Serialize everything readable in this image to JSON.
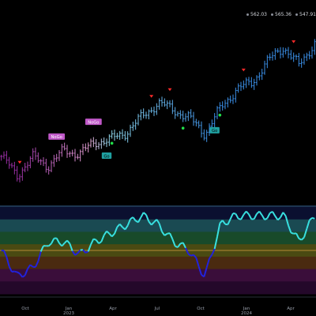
{
  "quote": {
    "open": "562.03",
    "high": "565.36",
    "low": "547.91"
  },
  "axis": {
    "month_labels": [
      "Oct",
      "Jan",
      "Apr",
      "Jul",
      "Oct",
      "Jan",
      "Apr"
    ],
    "year_labels": [
      "2023",
      "2024"
    ]
  },
  "signals": {
    "labels": [
      {
        "text": "NoGo",
        "bg": "#c058c8",
        "fg": "#ffffff"
      },
      {
        "text": "NoGo",
        "bg": "#c058c8",
        "fg": "#ffffff"
      },
      {
        "text": "Go",
        "bg": "#1fa0a0",
        "fg": "#000000"
      },
      {
        "text": "Go",
        "bg": "#1fa0a0",
        "fg": "#000000"
      }
    ]
  },
  "colors": {
    "background": "#000000",
    "go_strong": "#3a8ee6",
    "go_weak": "#8fd6ea",
    "nogo_strong": "#9b2fa6",
    "nogo_weak": "#e6a7d4",
    "oscillator_above": "#38e0e0",
    "oscillator_below": "#2222dd",
    "up_arrow": "#ff2a2a",
    "go_dot": "#22e04a",
    "osc_bands": [
      "#0b1030",
      "#1a4a52",
      "#184a2a",
      "#4a4a12",
      "#4a2a10",
      "#3a0e3a",
      "#24082a"
    ],
    "frame_line": "#3a6aa0",
    "zero_line": "#d8a040"
  },
  "chart_data": [
    {
      "type": "ohlc",
      "x": [
        "2022-09",
        "2022-10",
        "2022-11",
        "2022-12",
        "2023-01",
        "2023-02",
        "2023-03",
        "2023-04",
        "2023-05",
        "2023-06",
        "2023-07",
        "2023-08",
        "2023-09",
        "2023-10",
        "2023-11",
        "2023-12",
        "2024-01",
        "2024-02",
        "2024-03",
        "2024-04",
        "2024-05"
      ],
      "close": [
        393,
        371,
        392,
        382,
        400,
        396,
        410,
        413,
        422,
        440,
        456,
        448,
        438,
        420,
        450,
        472,
        480,
        505,
        522,
        500,
        527
      ],
      "series": [
        {
          "name": "Go",
          "color": "#3a8ee6"
        },
        {
          "name": "NoGo",
          "color": "#9b2fa6"
        }
      ]
    },
    {
      "type": "area",
      "x": [
        "2022-09",
        "2022-10",
        "2022-11",
        "2022-12",
        "2023-01",
        "2023-02",
        "2023-03",
        "2023-04",
        "2023-05",
        "2023-06",
        "2023-07",
        "2023-08",
        "2023-09",
        "2023-10",
        "2023-11",
        "2023-12",
        "2024-01",
        "2024-02",
        "2024-03",
        "2024-04",
        "2024-05"
      ],
      "values": [
        0,
        -3,
        -2,
        1,
        1,
        -0.5,
        1,
        2,
        3,
        4,
        3,
        1,
        0,
        -3,
        3,
        4,
        4,
        4,
        4,
        1,
        4
      ],
      "ylim": [
        -5,
        5
      ],
      "series": [
        {
          "name": "Go",
          "color": "#38e0e0"
        },
        {
          "name": "NoGo",
          "color": "#2222dd"
        }
      ]
    }
  ]
}
